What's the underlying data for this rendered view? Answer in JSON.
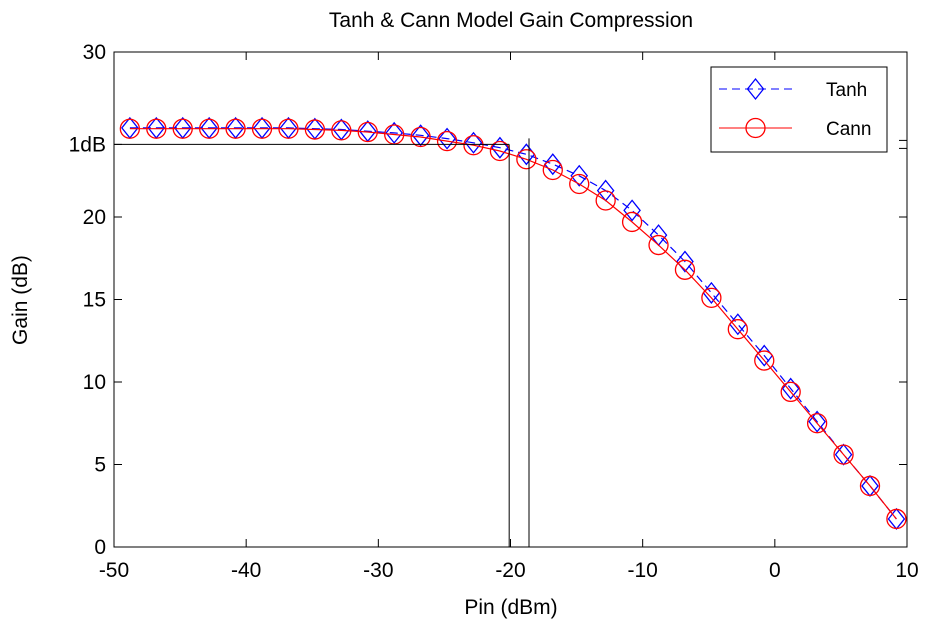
{
  "chart_data": {
    "type": "line",
    "title": "Tanh & Cann Model Gain Compression",
    "xlabel": "Pin (dBm)",
    "ylabel": "Gain (dB)",
    "xlim": [
      -50,
      10
    ],
    "ylim": [
      0,
      30
    ],
    "x_ticks": [
      -50,
      -40,
      -30,
      -20,
      -10,
      0,
      10
    ],
    "x_tick_labels": [
      "-50",
      "-40",
      "-30",
      "-20",
      "-10",
      "0",
      "10"
    ],
    "y_ticks": [
      0,
      5,
      10,
      15,
      20,
      30
    ],
    "y_tick_labels": [
      "0",
      "5",
      "10",
      "15",
      "20",
      "30"
    ],
    "annotation": {
      "label": "1dB",
      "y": 24.4,
      "x_compression_tanh": -18.6,
      "x_compression_cann": -20.1
    },
    "legend": {
      "placement": "top-right"
    },
    "grid": false,
    "x": [
      -48.8,
      -46.8,
      -44.8,
      -42.8,
      -40.8,
      -38.8,
      -36.8,
      -34.8,
      -32.8,
      -30.8,
      -28.8,
      -26.8,
      -24.8,
      -22.8,
      -20.8,
      -18.8,
      -16.8,
      -14.8,
      -12.8,
      -10.8,
      -8.8,
      -6.8,
      -4.8,
      -2.8,
      -0.8,
      1.2,
      3.2,
      5.2,
      7.2,
      9.2
    ],
    "series": [
      {
        "name": "Tanh",
        "color": "#0000ff",
        "marker": "diamond",
        "line_style": "dashed",
        "values": [
          25.4,
          25.4,
          25.4,
          25.4,
          25.4,
          25.4,
          25.4,
          25.35,
          25.3,
          25.2,
          25.1,
          24.95,
          24.75,
          24.5,
          24.2,
          23.8,
          23.2,
          22.5,
          21.6,
          20.4,
          18.9,
          17.3,
          15.4,
          13.5,
          11.6,
          9.6,
          7.6,
          5.6,
          3.7,
          1.7
        ]
      },
      {
        "name": "Cann",
        "color": "#ff0000",
        "marker": "circle",
        "line_style": "solid",
        "values": [
          25.35,
          25.35,
          25.35,
          25.35,
          25.35,
          25.35,
          25.35,
          25.3,
          25.25,
          25.15,
          25.0,
          24.85,
          24.6,
          24.35,
          24.0,
          23.5,
          22.85,
          22.0,
          21.0,
          19.7,
          18.3,
          16.8,
          15.1,
          13.2,
          11.3,
          9.4,
          7.5,
          5.6,
          3.7,
          1.7
        ]
      }
    ]
  }
}
